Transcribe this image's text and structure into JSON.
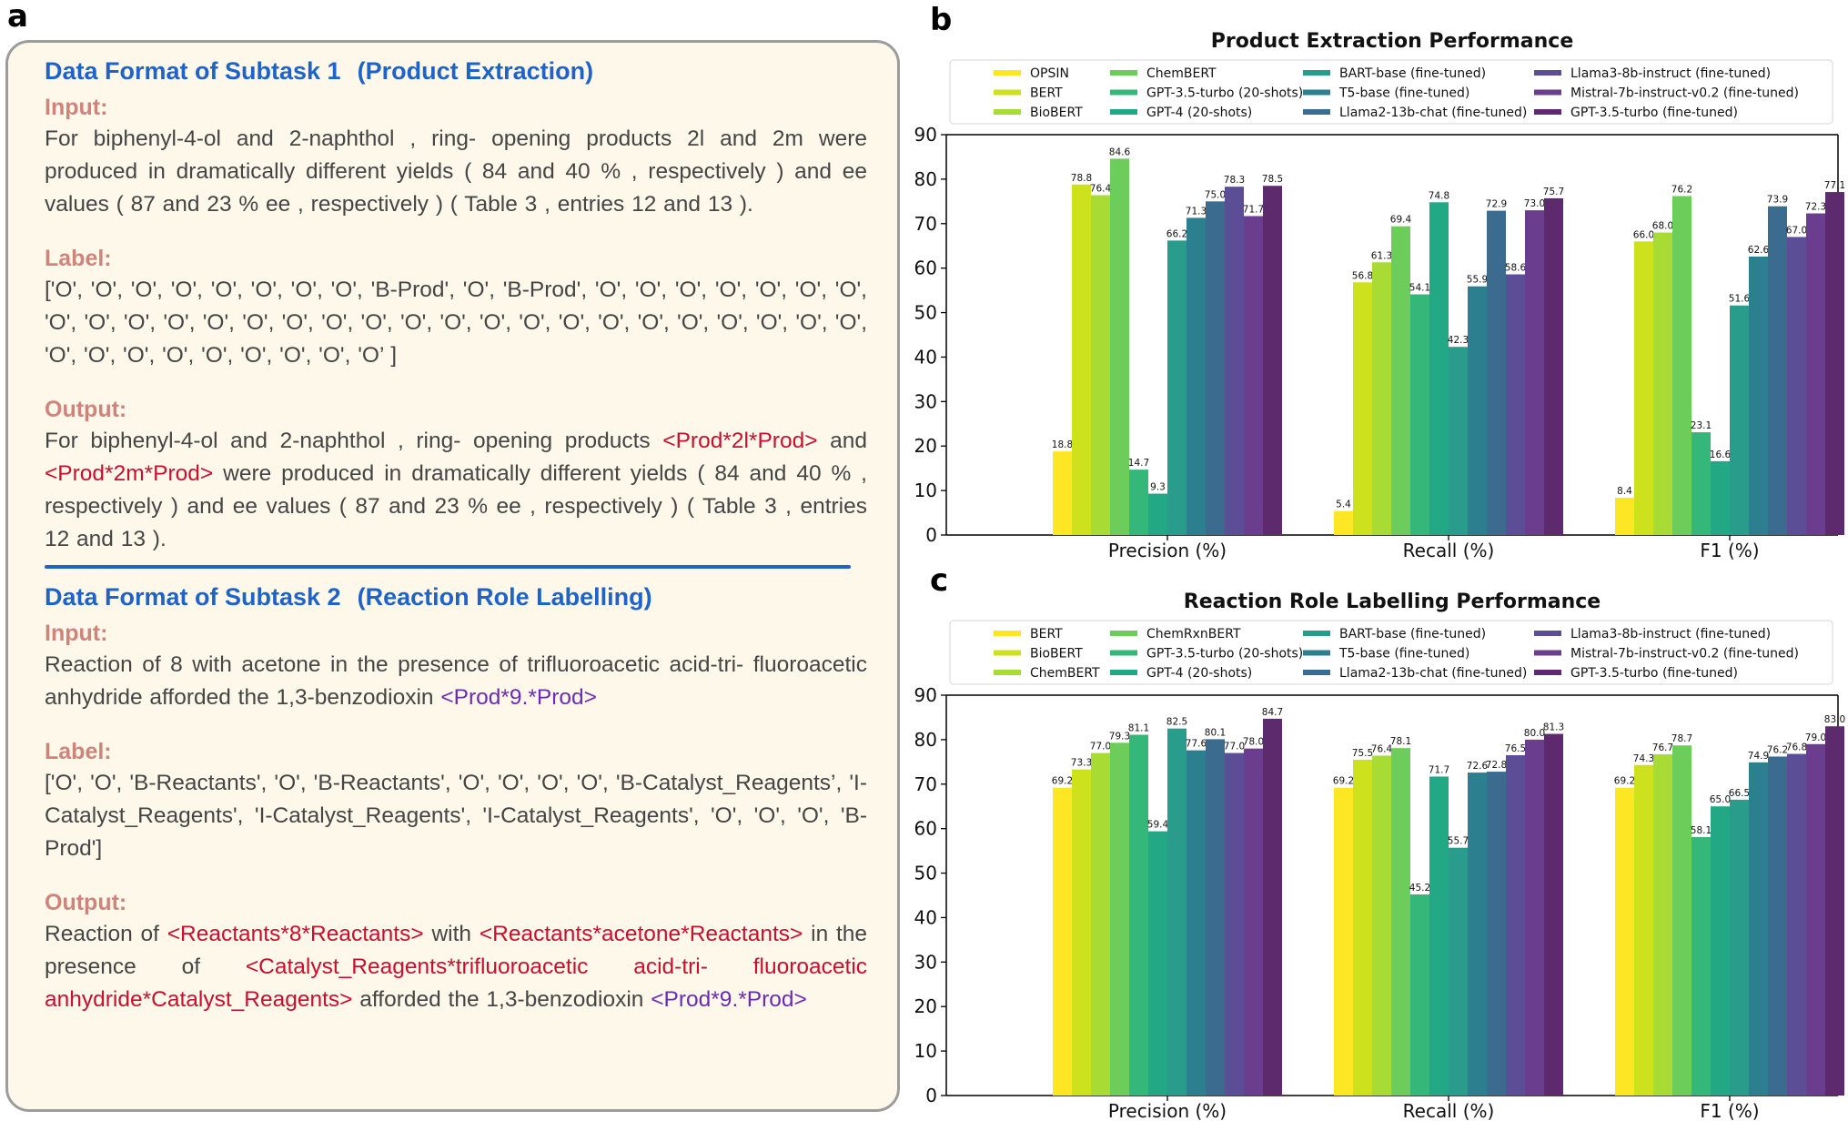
{
  "panel_labels": {
    "a": "a",
    "b": "b",
    "c": "c"
  },
  "subtask1": {
    "title": "Data Format of Subtask 1",
    "subtitle": "(Product Extraction)",
    "input_label": "Input:",
    "input_text": "For biphenyl-4-ol and 2-naphthol , ring- opening products 2l and 2m were produced in dramatically different yields ( 84 and 40 % , respectively ) and ee values ( 87 and 23 % ee , respectively ) ( Table 3 , entries 12 and 13 ).",
    "label_label": "Label:",
    "label_text": "['O', 'O', 'O', 'O', 'O', 'O', 'O', 'O', 'B-Prod', 'O', 'B-Prod', 'O', 'O', 'O', 'O', 'O', 'O', 'O', 'O', 'O', 'O', 'O', 'O', 'O', 'O', 'O', 'O', 'O', 'O', 'O', 'O', 'O', 'O', 'O', 'O', 'O', 'O', 'O', 'O', 'O', 'O', 'O', 'O', 'O', 'O', 'O', 'O', 'O’  ]",
    "output_label": "Output:",
    "output_1": "For biphenyl-4-ol and 2-naphthol , ring- opening products",
    "output_tag1": "<Prod*2l*Prod>",
    "output_2": "and",
    "output_tag2": "<Prod*2m*Prod>",
    "output_3": "were produced in dramatically different yields ( 84 and 40 % , respectively ) and ee values ( 87 and 23 % ee , respectively ) ( Table 3 , entries 12 and 13 )."
  },
  "subtask2": {
    "title": "Data Format of Subtask 2",
    "subtitle": "(Reaction Role Labelling)",
    "input_label": "Input:",
    "input_text": "Reaction of 8 with acetone in the presence of trifluoroacetic acid-tri- fluoroacetic anhydride afforded the 1,3-benzodioxin",
    "input_tag": "<Prod*9.*Prod>",
    "label_label": "Label:",
    "label_text": "['O', 'O', 'B-Reactants', 'O', 'B-Reactants', 'O', 'O', 'O', 'O', 'B-Catalyst_Reagents’, 'I-Catalyst_Reagents', 'I-Catalyst_Reagents', 'I-Catalyst_Reagents', 'O', 'O', 'O', 'B-Prod']",
    "output_label": "Output:",
    "output_1": "Reaction of",
    "output_tag1": "<Reactants*8*Reactants>",
    "output_2": "with",
    "output_tag2": "<Reactants*acetone*Reactants>",
    "output_3": "in the presence of",
    "output_tag3": "<Catalyst_Reagents*trifluoroacetic acid-tri- fluoroacetic anhydride*Catalyst_Reagents>",
    "output_4": "afforded the 1,3-benzodioxin",
    "output_tag4": "<Prod*9.*Prod>"
  },
  "colors": {
    "red": "#c8102e",
    "purple": "#6a2bb5",
    "blue": "#1f63c9",
    "label": "#d0837b"
  },
  "chart_data": [
    {
      "type": "bar",
      "title": "Product Extraction Performance",
      "categories": [
        "Precision (%)",
        "Recall (%)",
        "F1 (%)"
      ],
      "ylim": [
        0,
        90
      ],
      "yticks": [
        0,
        10,
        20,
        30,
        40,
        50,
        60,
        70,
        80,
        90
      ],
      "grid": false,
      "legend_position": "top",
      "series": [
        {
          "name": "OPSIN",
          "color": "#fde725",
          "values": [
            18.8,
            5.4,
            8.4
          ]
        },
        {
          "name": "BERT",
          "color": "#cde11d",
          "values": [
            78.8,
            56.8,
            66.0
          ]
        },
        {
          "name": "BioBERT",
          "color": "#a8db34",
          "values": [
            76.4,
            61.3,
            68.0
          ]
        },
        {
          "name": "ChemBERT",
          "color": "#6ccd5a",
          "values": [
            84.6,
            69.4,
            76.2
          ]
        },
        {
          "name": "GPT-3.5-turbo (20-shots)",
          "color": "#35b779",
          "values": [
            14.7,
            54.1,
            23.1
          ]
        },
        {
          "name": "GPT-4 (20-shots)",
          "color": "#22a884",
          "values": [
            9.3,
            74.8,
            16.6
          ]
        },
        {
          "name": "BART-base (fine-tuned)",
          "color": "#2a9c8b",
          "values": [
            66.2,
            42.3,
            51.6
          ]
        },
        {
          "name": "T5-base (fine-tuned)",
          "color": "#2b7f8e",
          "values": [
            71.3,
            55.9,
            62.6
          ]
        },
        {
          "name": "Llama2-13b-chat (fine-tuned)",
          "color": "#3b6b8e",
          "values": [
            75.0,
            72.9,
            73.9
          ]
        },
        {
          "name": "Llama3-8b-instruct (fine-tuned)",
          "color": "#5b4e96",
          "values": [
            78.3,
            58.6,
            67.0
          ]
        },
        {
          "name": "Mistral-7b-instruct-v0.2 (fine-tuned)",
          "color": "#6a3d8e",
          "values": [
            71.7,
            73.0,
            72.3
          ]
        },
        {
          "name": "GPT-3.5-turbo (fine-tuned)",
          "color": "#5e2a6e",
          "values": [
            78.5,
            75.7,
            77.1
          ]
        }
      ]
    },
    {
      "type": "bar",
      "title": "Reaction Role Labelling Performance",
      "categories": [
        "Precision (%)",
        "Recall (%)",
        "F1 (%)"
      ],
      "ylim": [
        0,
        90
      ],
      "yticks": [
        0,
        10,
        20,
        30,
        40,
        50,
        60,
        70,
        80,
        90
      ],
      "grid": false,
      "legend_position": "top",
      "series": [
        {
          "name": "BERT",
          "color": "#fde725",
          "values": [
            69.2,
            69.2,
            69.2
          ]
        },
        {
          "name": "BioBERT",
          "color": "#cde11d",
          "values": [
            73.3,
            75.5,
            74.3
          ]
        },
        {
          "name": "ChemBERT",
          "color": "#a8db34",
          "values": [
            77.0,
            76.4,
            76.7
          ]
        },
        {
          "name": "ChemRxnBERT",
          "color": "#6ccd5a",
          "values": [
            79.3,
            78.1,
            78.7
          ]
        },
        {
          "name": "GPT-3.5-turbo (20-shots)",
          "color": "#35b779",
          "values": [
            81.1,
            45.2,
            58.1
          ]
        },
        {
          "name": "GPT-4 (20-shots)",
          "color": "#22a884",
          "values": [
            59.4,
            71.7,
            65.0
          ]
        },
        {
          "name": "BART-base (fine-tuned)",
          "color": "#2a9c8b",
          "values": [
            82.5,
            55.7,
            66.5
          ]
        },
        {
          "name": "T5-base (fine-tuned)",
          "color": "#2b7f8e",
          "values": [
            77.6,
            72.6,
            74.9
          ]
        },
        {
          "name": "Llama2-13b-chat (fine-tuned)",
          "color": "#3b6b8e",
          "values": [
            80.1,
            72.8,
            76.2
          ]
        },
        {
          "name": "Llama3-8b-instruct (fine-tuned)",
          "color": "#5b4e96",
          "values": [
            77.0,
            76.5,
            76.8
          ]
        },
        {
          "name": "Mistral-7b-instruct-v0.2 (fine-tuned)",
          "color": "#6a3d8e",
          "values": [
            78.0,
            80.0,
            79.0
          ]
        },
        {
          "name": "GPT-3.5-turbo (fine-tuned)",
          "color": "#5e2a6e",
          "values": [
            84.7,
            81.3,
            83.0
          ]
        }
      ]
    }
  ]
}
